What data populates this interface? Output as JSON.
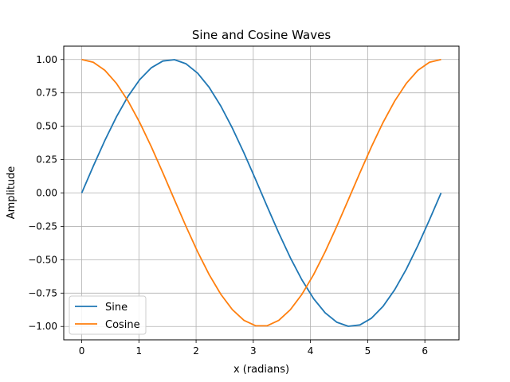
{
  "chart_data": {
    "type": "line",
    "title": "Sine and Cosine Waves",
    "xlabel": "x (radians)",
    "ylabel": "Amplitude",
    "xlim": [
      -0.314,
      6.597
    ],
    "ylim": [
      -1.1,
      1.1
    ],
    "xticks": [
      0,
      1,
      2,
      3,
      4,
      5,
      6
    ],
    "xtick_labels": [
      "0",
      "1",
      "2",
      "3",
      "4",
      "5",
      "6"
    ],
    "yticks": [
      -1.0,
      -0.75,
      -0.5,
      -0.25,
      0.0,
      0.25,
      0.5,
      0.75,
      1.0
    ],
    "ytick_labels": [
      "−1.00",
      "−0.75",
      "−0.50",
      "−0.25",
      "0.00",
      "0.25",
      "0.50",
      "0.75",
      "1.00"
    ],
    "grid": true,
    "legend_position": "lower-left",
    "x": [
      0.0,
      0.2027,
      0.4054,
      0.6081,
      0.8107,
      1.0134,
      1.2161,
      1.4188,
      1.6215,
      1.8242,
      2.0268,
      2.2295,
      2.4322,
      2.6349,
      2.8376,
      3.0403,
      3.2429,
      3.4456,
      3.6483,
      3.851,
      4.0537,
      4.2564,
      4.459,
      4.6617,
      4.8644,
      5.0671,
      5.2698,
      5.4725,
      5.6751,
      5.8778,
      6.0805,
      6.2832
    ],
    "series": [
      {
        "name": "Sine",
        "color": "#1f77b4",
        "values": [
          0.0,
          0.2013,
          0.3944,
          0.5713,
          0.7248,
          0.8486,
          0.9378,
          0.9885,
          0.9987,
          0.9679,
          0.8979,
          0.7908,
          0.6514,
          0.4853,
          0.2994,
          0.1012,
          -0.1012,
          -0.2994,
          -0.4853,
          -0.6514,
          -0.7908,
          -0.8979,
          -0.9679,
          -0.9987,
          -0.9885,
          -0.9378,
          -0.8486,
          -0.7248,
          -0.5713,
          -0.3944,
          -0.2013,
          0.0
        ]
      },
      {
        "name": "Cosine",
        "color": "#ff7f0e",
        "values": [
          1.0,
          0.9795,
          0.919,
          0.8208,
          0.689,
          0.529,
          0.3473,
          0.1514,
          -0.0506,
          -0.2507,
          -0.4404,
          -0.6121,
          -0.7588,
          -0.8743,
          -0.9541,
          -0.9949,
          -0.9949,
          -0.9541,
          -0.8743,
          -0.7588,
          -0.6121,
          -0.4404,
          -0.2507,
          -0.0506,
          0.1514,
          0.3473,
          0.529,
          0.689,
          0.8208,
          0.919,
          0.9795,
          1.0
        ]
      }
    ]
  }
}
